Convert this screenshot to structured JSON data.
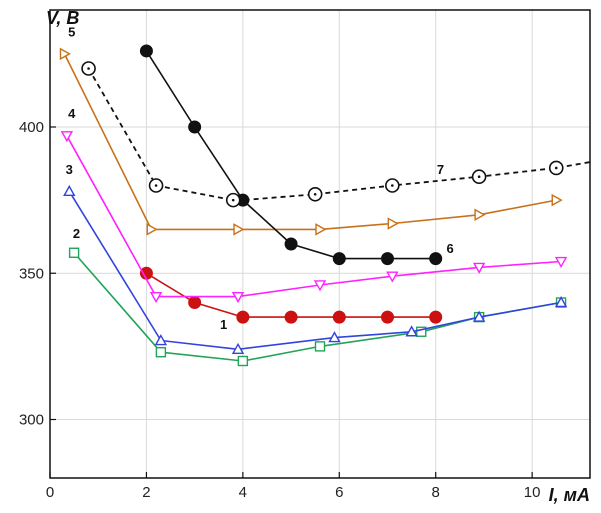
{
  "chart_data": {
    "type": "line",
    "title": "",
    "xlabel": "I, мА",
    "ylabel": "V, В",
    "xlim": [
      0,
      11.2
    ],
    "ylim": [
      280,
      440
    ],
    "xticks": [
      0,
      2,
      4,
      6,
      8,
      10
    ],
    "yticks": [
      300,
      350,
      400
    ],
    "grid": true,
    "legend": "none",
    "series": [
      {
        "name": "1",
        "color": "#cc1111",
        "marker": "filled-circle",
        "dash": "solid",
        "label_pos": [
          3.6,
          331
        ],
        "points": [
          [
            2.0,
            350
          ],
          [
            3.0,
            340
          ],
          [
            4.0,
            335
          ],
          [
            5.0,
            335
          ],
          [
            6.0,
            335
          ],
          [
            7.0,
            335
          ],
          [
            8.0,
            335
          ]
        ]
      },
      {
        "name": "2",
        "color": "#22a35a",
        "marker": "open-square",
        "dash": "solid",
        "label_pos": [
          0.55,
          362
        ],
        "points": [
          [
            0.5,
            357
          ],
          [
            2.3,
            323
          ],
          [
            4.0,
            320
          ],
          [
            5.6,
            325
          ],
          [
            7.7,
            330
          ],
          [
            8.9,
            335
          ],
          [
            10.6,
            340
          ]
        ]
      },
      {
        "name": "3",
        "color": "#3344dd",
        "marker": "open-triangle-up",
        "dash": "solid",
        "label_pos": [
          0.4,
          384
        ],
        "points": [
          [
            0.4,
            378
          ],
          [
            2.3,
            327
          ],
          [
            3.9,
            324
          ],
          [
            5.9,
            328
          ],
          [
            7.5,
            330
          ],
          [
            8.9,
            335
          ],
          [
            10.6,
            340
          ]
        ]
      },
      {
        "name": "4",
        "color": "#ff22ff",
        "marker": "open-triangle-down",
        "dash": "solid",
        "label_pos": [
          0.45,
          403
        ],
        "points": [
          [
            0.35,
            397
          ],
          [
            2.2,
            342
          ],
          [
            3.9,
            342
          ],
          [
            5.6,
            346
          ],
          [
            7.1,
            349
          ],
          [
            8.9,
            352
          ],
          [
            10.6,
            354
          ]
        ]
      },
      {
        "name": "5",
        "color": "#c8711a",
        "marker": "open-triangle-right",
        "dash": "solid",
        "label_pos": [
          0.45,
          431
        ],
        "points": [
          [
            0.3,
            425
          ],
          [
            2.1,
            365
          ],
          [
            3.9,
            365
          ],
          [
            5.6,
            365
          ],
          [
            7.1,
            367
          ],
          [
            8.9,
            370
          ],
          [
            10.5,
            375
          ]
        ]
      },
      {
        "name": "6",
        "color": "#111111",
        "marker": "filled-circle",
        "dash": "solid",
        "label_pos": [
          8.3,
          357
        ],
        "points": [
          [
            2.0,
            426
          ],
          [
            3.0,
            400
          ],
          [
            4.0,
            375
          ],
          [
            5.0,
            360
          ],
          [
            6.0,
            355
          ],
          [
            7.0,
            355
          ],
          [
            8.0,
            355
          ]
        ]
      },
      {
        "name": "7",
        "color": "#111111",
        "marker": "open-circle-dot",
        "dash": "dashed",
        "label_pos": [
          8.1,
          384
        ],
        "points": [
          [
            0.8,
            420
          ],
          [
            2.2,
            380
          ],
          [
            3.8,
            375
          ],
          [
            4.0,
            375
          ],
          [
            5.5,
            377
          ],
          [
            7.1,
            380
          ],
          [
            8.9,
            383
          ],
          [
            10.5,
            386
          ],
          [
            11.2,
            388
          ]
        ],
        "markers_at": [
          0,
          1,
          2,
          4,
          5,
          6,
          7
        ]
      }
    ]
  }
}
